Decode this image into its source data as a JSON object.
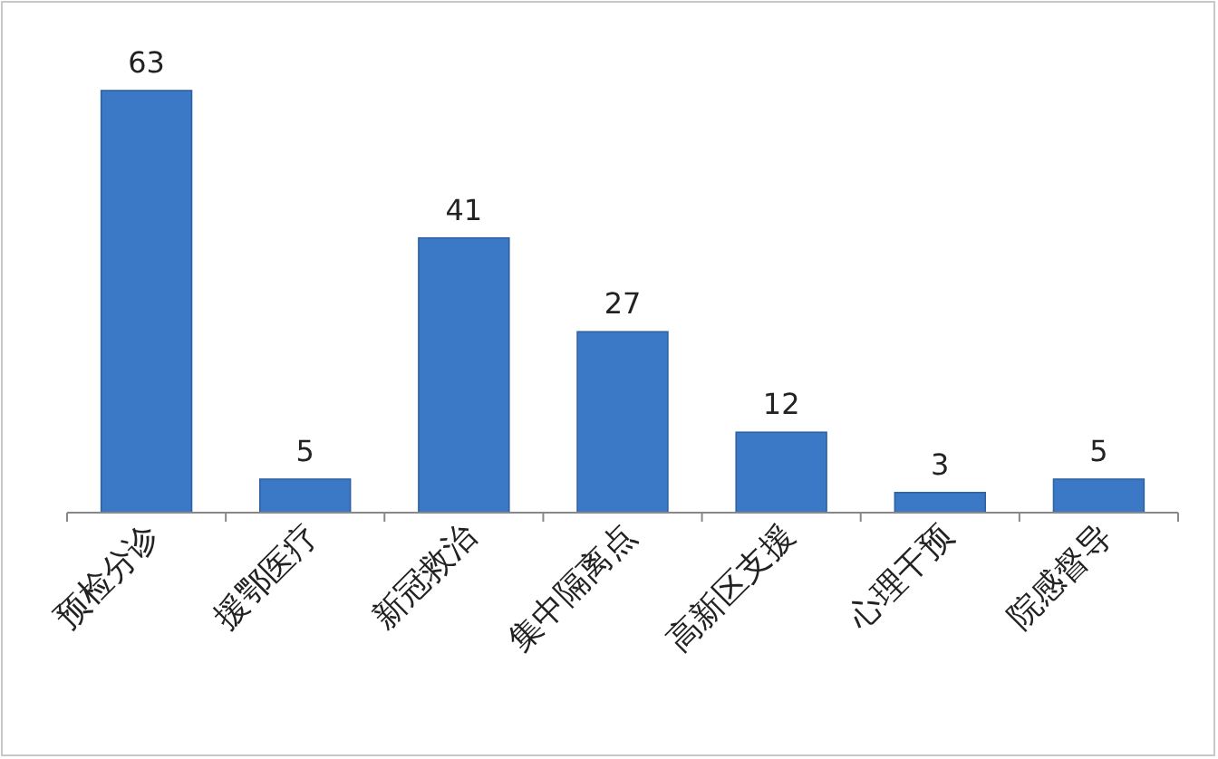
{
  "chart_data": {
    "type": "bar",
    "categories": [
      "预检分诊",
      "援鄂医疗",
      "新冠救治",
      "集中隔离点",
      "高新区支援",
      "心理干预",
      "院感督导"
    ],
    "values": [
      63,
      5,
      41,
      27,
      12,
      3,
      5
    ],
    "color": "#3b78c6",
    "data_labels": true
  }
}
